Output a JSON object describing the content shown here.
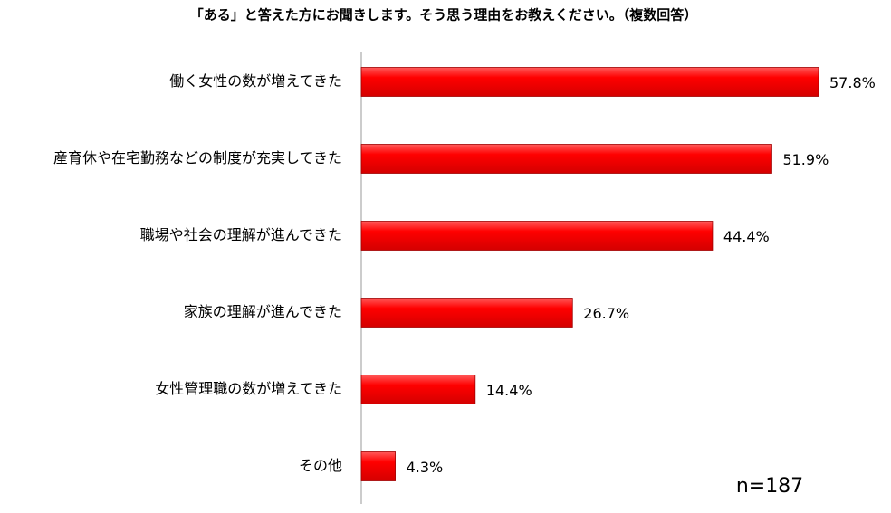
{
  "chart_data": {
    "type": "bar",
    "orientation": "horizontal",
    "title": "「ある」と答えた方にお聞きします。そう思う理由をお教えください。（複数回答）",
    "categories": [
      "働く女性の数が増えてきた",
      "産育休や在宅勤務などの制度が充実してきた",
      "職場や社会の理解が進んできた",
      "家族の理解が進んできた",
      "女性管理職の数が増えてきた",
      "その他"
    ],
    "values": [
      57.8,
      51.9,
      44.4,
      26.7,
      14.4,
      4.3
    ],
    "value_labels": [
      "57.8%",
      "51.9%",
      "44.4%",
      "26.7%",
      "14.4%",
      "4.3%"
    ],
    "color": "#ff0000",
    "note": "n=187"
  }
}
